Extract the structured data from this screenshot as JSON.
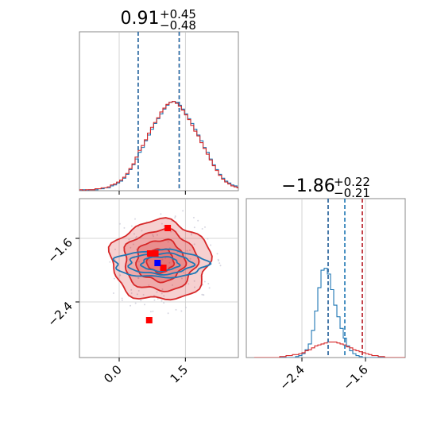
{
  "chart_data": [
    {
      "panel": "top-left histogram",
      "type": "histogram",
      "title": {
        "value": "0.91",
        "upper": "+0.45",
        "lower": "−0.48"
      },
      "xlim": [
        -0.9,
        2.7
      ],
      "grid": true,
      "show_ticks_labels": false,
      "bins_start": -0.9,
      "bin_width": 0.07,
      "series": [
        {
          "name": "",
          "color": "#1f77b4",
          "counts": [
            0,
            1,
            0,
            1,
            1,
            1,
            2,
            2,
            3,
            3,
            5,
            6,
            8,
            10,
            13,
            17,
            22,
            27,
            33,
            40,
            45,
            52,
            58,
            64,
            70,
            75,
            80,
            85,
            89,
            92,
            93,
            92,
            89,
            85,
            80,
            75,
            70,
            64,
            58,
            52,
            45,
            40,
            33,
            27,
            22,
            17,
            13,
            10,
            8,
            6,
            5,
            3,
            2,
            2,
            1,
            1,
            1,
            0
          ]
        },
        {
          "name": "",
          "color": "#d62728",
          "counts": [
            1,
            0,
            1,
            1,
            1,
            2,
            2,
            3,
            3,
            4,
            6,
            7,
            9,
            11,
            14,
            18,
            23,
            28,
            35,
            42,
            47,
            53,
            60,
            66,
            71,
            76,
            82,
            86,
            90,
            92,
            93,
            91,
            88,
            84,
            79,
            74,
            68,
            62,
            57,
            50,
            44,
            38,
            32,
            26,
            21,
            16,
            12,
            9,
            7,
            5,
            4,
            3,
            2,
            1,
            1,
            1,
            0,
            1
          ]
        }
      ],
      "quantile_lines": [
        {
          "x": 0.43,
          "color": "#d62728"
        },
        {
          "x": 0.43,
          "color": "#1f77b4"
        },
        {
          "x": 1.36,
          "color": "#d62728"
        },
        {
          "x": 1.36,
          "color": "#1f77b4"
        }
      ]
    },
    {
      "panel": "bottom-left 2d contour",
      "type": "scatter",
      "xlim": [
        -0.9,
        2.7
      ],
      "ylim": [
        -3.1,
        -1.1
      ],
      "xticks": [
        0.0,
        1.5
      ],
      "xtick_labels": [
        "0.0",
        "1.5"
      ],
      "yticks": [
        -1.6,
        -2.4
      ],
      "ytick_labels": [
        "−1.6",
        "−2.4"
      ],
      "grid": true,
      "contours": [
        {
          "name": "",
          "color": "#d62728",
          "filled": true,
          "center": [
            0.93,
            -1.88
          ],
          "radii": [
            [
              1.12,
              0.5
            ],
            [
              0.82,
              0.38
            ],
            [
              0.55,
              0.26
            ],
            [
              0.3,
              0.15
            ]
          ]
        },
        {
          "name": "",
          "color": "#1f77b4",
          "filled": false,
          "center": [
            0.93,
            -1.92
          ],
          "radii": [
            [
              1.05,
              0.17
            ],
            [
              0.72,
              0.13
            ],
            [
              0.42,
              0.09
            ]
          ]
        }
      ],
      "points": [
        {
          "x": 1.1,
          "y": -1.47,
          "color": "#ff0000"
        },
        {
          "x": 0.7,
          "y": -1.79,
          "color": "#ff0000"
        },
        {
          "x": 0.82,
          "y": -1.79,
          "color": "#ff0000"
        },
        {
          "x": 1.0,
          "y": -1.97,
          "color": "#ff0000"
        },
        {
          "x": 0.68,
          "y": -2.63,
          "color": "#ff0000"
        },
        {
          "x": 0.87,
          "y": -1.91,
          "color": "#0000ff"
        }
      ]
    },
    {
      "panel": "bottom-right histogram",
      "type": "histogram",
      "title": {
        "value": "−1.86",
        "upper": "+0.22",
        "lower": "−0.21"
      },
      "xlim": [
        -3.1,
        -1.1
      ],
      "xticks": [
        -2.4,
        -1.6
      ],
      "xtick_labels": [
        "−2.4",
        "−1.6"
      ],
      "grid": true,
      "bins_start": -3.0,
      "bin_width": 0.04,
      "series": [
        {
          "name": "",
          "color": "#1f77b4",
          "counts": [
            0,
            0,
            0,
            0,
            0,
            0,
            0,
            0,
            0,
            0,
            0,
            0,
            0,
            1,
            2,
            4,
            8,
            14,
            28,
            48,
            72,
            90,
            92,
            86,
            70,
            54,
            42,
            30,
            20,
            12,
            7,
            4,
            2,
            1,
            0,
            0,
            0,
            0,
            0,
            0,
            0,
            0,
            0,
            0,
            0,
            0,
            0,
            0
          ]
        },
        {
          "name": "",
          "color": "#d62728",
          "counts": [
            0,
            0,
            0,
            0,
            0,
            0,
            0,
            0,
            1,
            1,
            2,
            2,
            3,
            3,
            4,
            5,
            7,
            8,
            10,
            12,
            13,
            14,
            15,
            16,
            16,
            16,
            15,
            14,
            13,
            11,
            10,
            8,
            7,
            6,
            5,
            4,
            3,
            2,
            2,
            1,
            1,
            0,
            0,
            0,
            0,
            0,
            0,
            0
          ]
        }
      ],
      "quantile_lines": [
        {
          "x": -2.07,
          "color": "#d62728"
        },
        {
          "x": -2.07,
          "color": "#1f77b4"
        },
        {
          "x": -1.86,
          "color": "#1f77b4"
        },
        {
          "x": -1.64,
          "color": "#1f77b4"
        },
        {
          "x": -1.64,
          "color": "#d62728"
        }
      ]
    }
  ]
}
